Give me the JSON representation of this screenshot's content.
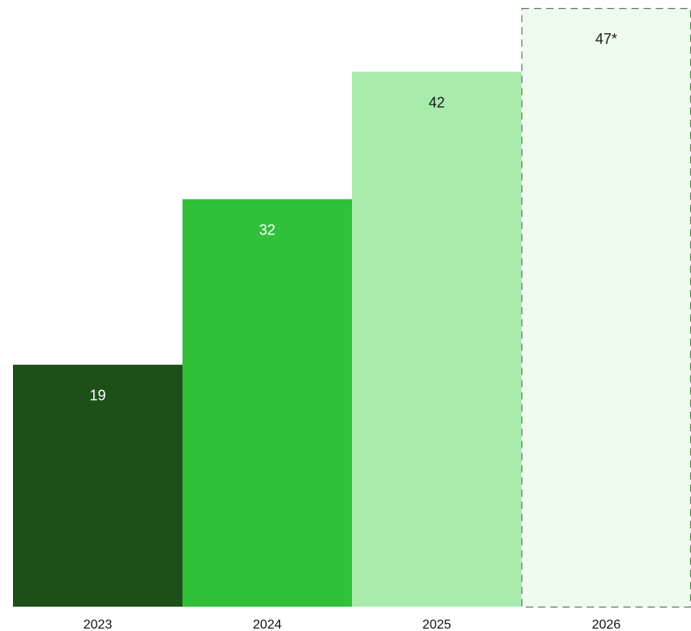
{
  "chart_data": {
    "type": "bar",
    "title": "",
    "xlabel": "",
    "ylabel": "",
    "ylim": [
      0,
      47
    ],
    "grid": false,
    "legend": "none",
    "categories": [
      "2023",
      "2024",
      "2025",
      "2026"
    ],
    "values": [
      19,
      32,
      42,
      47
    ],
    "data_labels": [
      "19",
      "32",
      "42",
      "47*"
    ],
    "styles": [
      {
        "fill": "#1e4f19",
        "label_color": "#ffffff",
        "dashed": false
      },
      {
        "fill": "#31c03a",
        "label_color": "#ffffff",
        "dashed": false
      },
      {
        "fill": "#a9ebad",
        "label_color": "#1a1a1a",
        "dashed": false
      },
      {
        "fill": "#eefaee",
        "label_color": "#1a1a1a",
        "dashed": true,
        "stroke": "#5b7a5b"
      }
    ]
  }
}
